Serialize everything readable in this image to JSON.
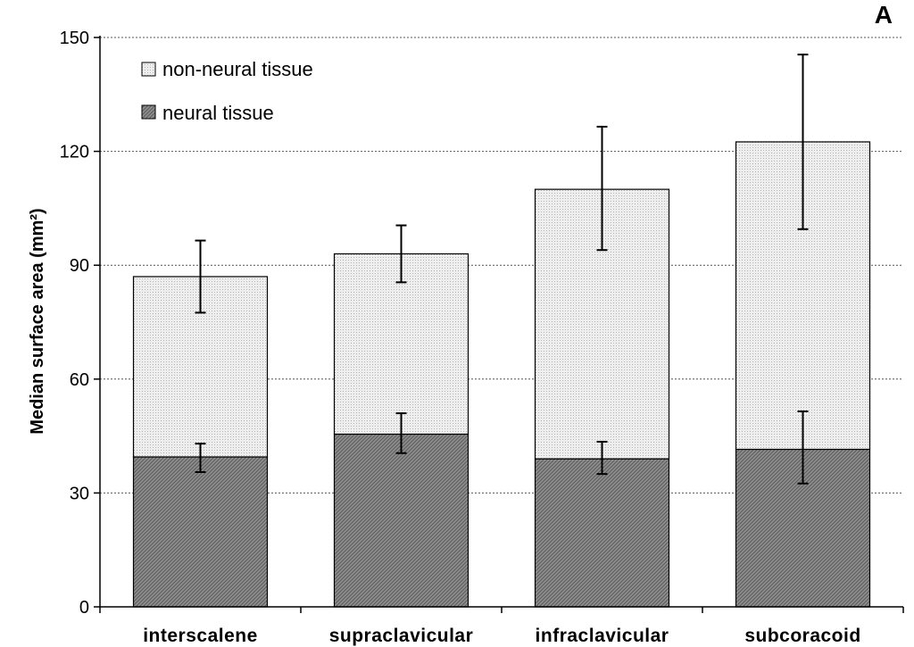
{
  "chart_data": {
    "type": "bar",
    "stacked": true,
    "panel_label": "A",
    "categories": [
      "interscalene",
      "supraclavicular",
      "infraclavicular",
      "subcoracoid"
    ],
    "series": [
      {
        "name": "neural tissue",
        "values": [
          39.5,
          45.5,
          39.0,
          41.5
        ],
        "error_low": [
          35.5,
          40.5,
          35.0,
          32.5
        ],
        "error_high": [
          43.0,
          51.0,
          43.5,
          51.5
        ],
        "color": "#8a8a8a"
      },
      {
        "name": "non-neural tissue",
        "values": [
          47.5,
          47.5,
          71.0,
          81.0
        ],
        "error_low": [
          77.5,
          85.5,
          94.0,
          99.5
        ],
        "error_high": [
          96.5,
          100.5,
          126.5,
          145.5
        ],
        "color": "#e6e6e6"
      }
    ],
    "totals": [
      87.0,
      93.0,
      110.0,
      122.5
    ],
    "ylabel": "Median surface area (mm²)",
    "xlabel": "",
    "ylim": [
      0,
      150
    ],
    "yticks": [
      0,
      30,
      60,
      90,
      120,
      150
    ],
    "grid": "horizontal dotted",
    "legend_position": "top-left"
  }
}
